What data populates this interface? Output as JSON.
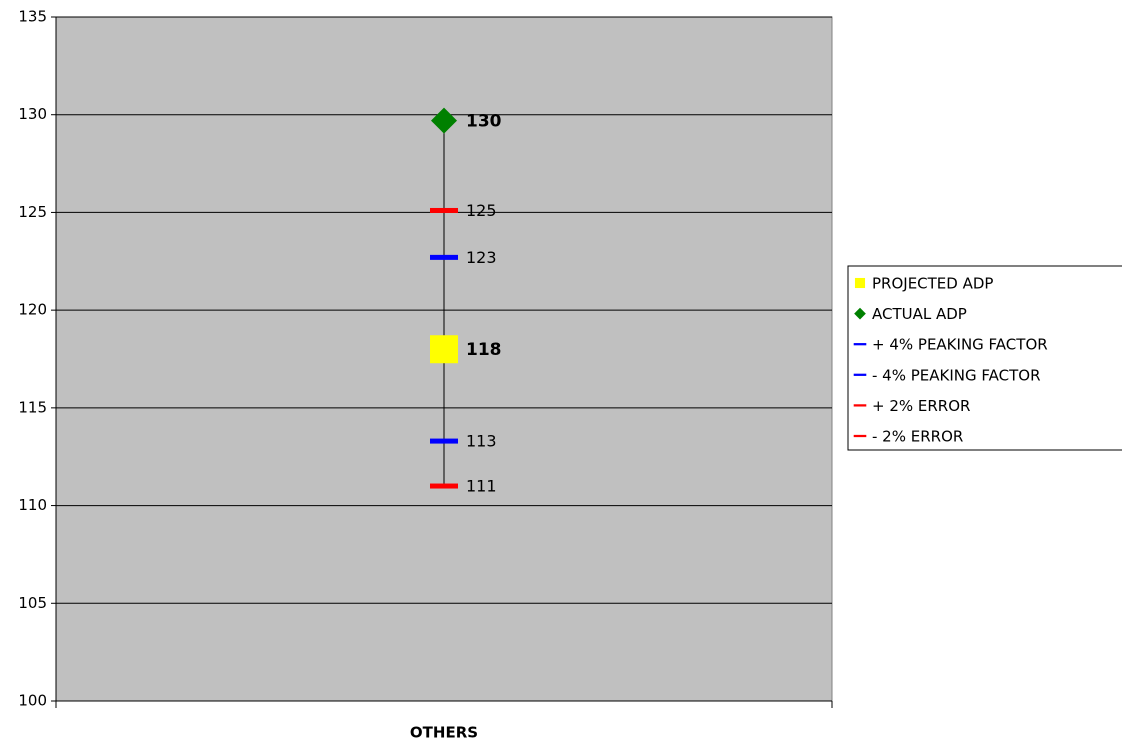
{
  "chart_data": {
    "type": "line",
    "categories": [
      "OTHERS"
    ],
    "series": [
      {
        "name": "PROJECTED ADP",
        "color": "#ffff00",
        "marker": "square",
        "label_bold": true,
        "values": [
          118.0
        ],
        "value_labels": [
          "118"
        ]
      },
      {
        "name": "ACTUAL ADP",
        "color": "#008000",
        "marker": "diamond",
        "label_bold": true,
        "values": [
          129.7
        ],
        "value_labels": [
          "130"
        ]
      },
      {
        "name": "+ 4% PEAKING FACTOR",
        "color": "#0000ff",
        "marker": "dash",
        "values": [
          122.7
        ],
        "value_labels": [
          "123"
        ]
      },
      {
        "name": "- 4% PEAKING FACTOR",
        "color": "#0000ff",
        "marker": "dash",
        "values": [
          113.3
        ],
        "value_labels": [
          "113"
        ]
      },
      {
        "name": "+ 2% ERROR",
        "color": "#ff0000",
        "marker": "dash",
        "values": [
          125.1
        ],
        "value_labels": [
          "125"
        ]
      },
      {
        "name": "- 2% ERROR",
        "color": "#ff0000",
        "marker": "dash",
        "values": [
          111.0
        ],
        "value_labels": [
          "111"
        ]
      }
    ],
    "ylim": [
      100,
      135
    ],
    "yticks": [
      100,
      105,
      110,
      115,
      120,
      125,
      130,
      135
    ],
    "grid": true,
    "legend": "right",
    "plot_background": "#c0c0c0"
  }
}
